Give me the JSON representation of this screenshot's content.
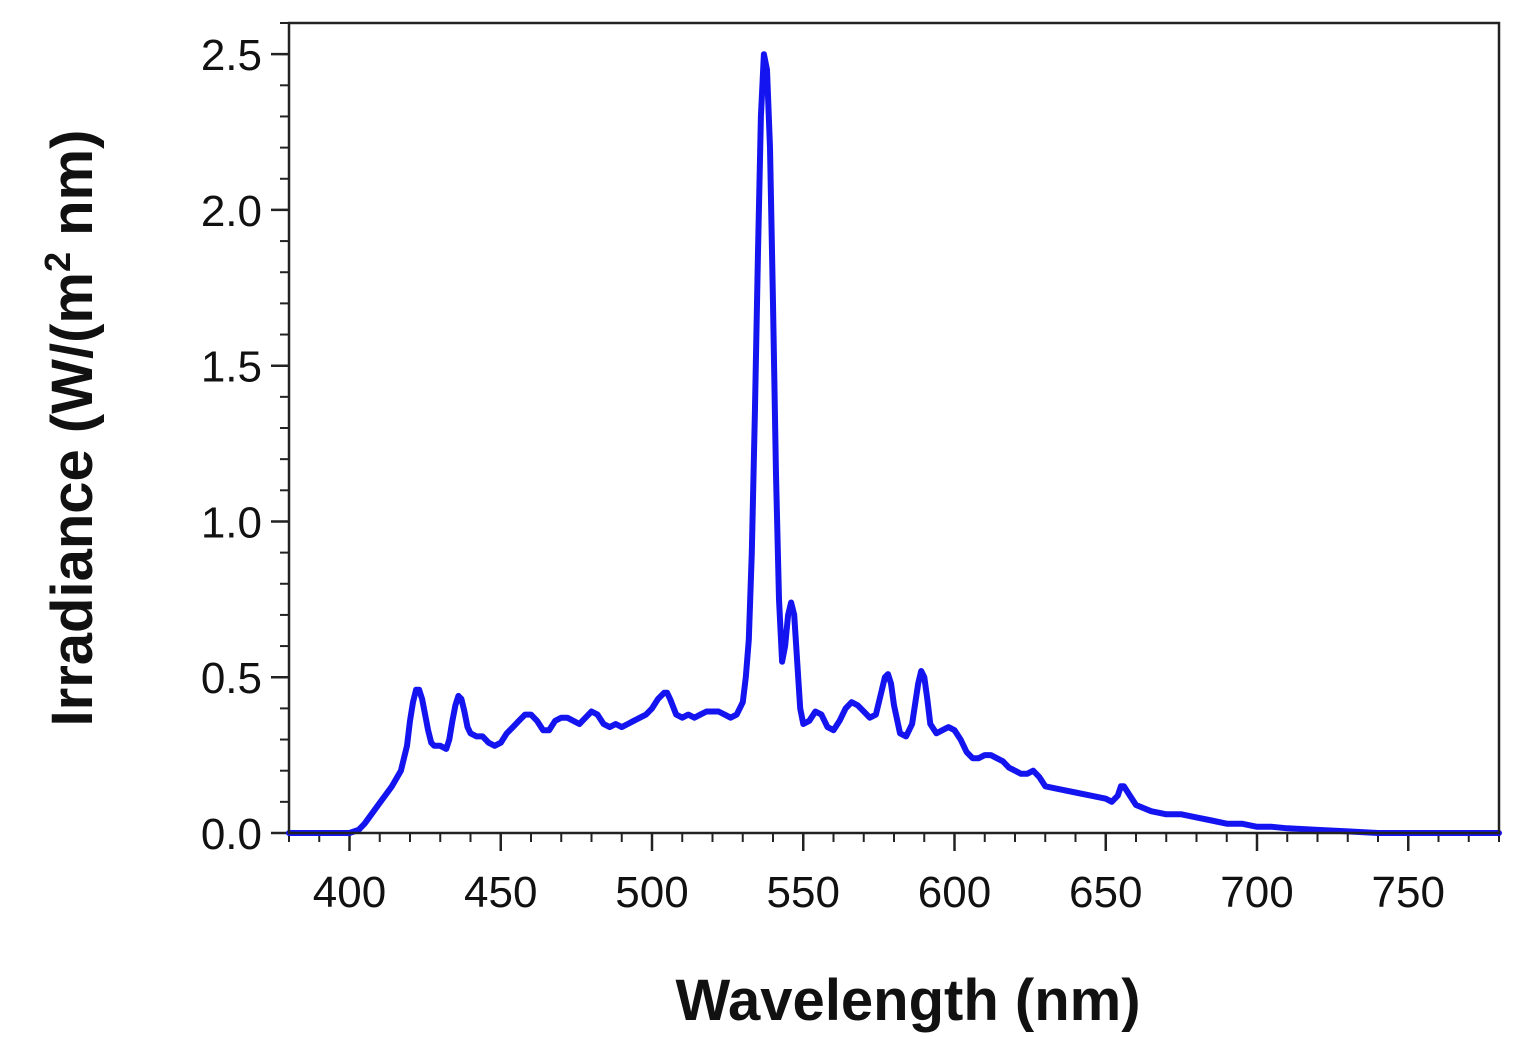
{
  "chart_data": {
    "type": "line",
    "title": "",
    "xlabel": "Wavelength (nm)",
    "ylabel": {
      "prefix": "Irradiance (W/(m",
      "superscript": "2",
      "suffix": " nm)"
    },
    "xlim": [
      380,
      780
    ],
    "ylim": [
      0,
      2.6
    ],
    "x_ticks": [
      400,
      450,
      500,
      550,
      600,
      650,
      700,
      750
    ],
    "x_tick_labels": [
      "400",
      "450",
      "500",
      "550",
      "600",
      "650",
      "700",
      "750"
    ],
    "y_ticks": [
      0,
      0.5,
      1.0,
      1.5,
      2.0,
      2.5
    ],
    "y_tick_labels": [
      "0.0",
      "0.5",
      "1.0",
      "1.5",
      "2.0",
      "2.5"
    ],
    "x_minor_step": 10,
    "y_minor_step": 0.1,
    "grid": false,
    "legend": "none",
    "series": [
      {
        "name": "Irradiance",
        "color": "#1414f0",
        "x": [
          380,
          390,
          400,
          403,
          405,
          408,
          411,
          414,
          417,
          419,
          420,
          421,
          422,
          423,
          424,
          425,
          426,
          427,
          428,
          430,
          432,
          433,
          434,
          435,
          436,
          437,
          438,
          439,
          440,
          442,
          444,
          446,
          448,
          450,
          452,
          454,
          456,
          458,
          460,
          462,
          464,
          466,
          468,
          470,
          472,
          474,
          476,
          478,
          480,
          482,
          484,
          486,
          488,
          490,
          492,
          494,
          496,
          498,
          500,
          502,
          504,
          505,
          506,
          508,
          510,
          512,
          514,
          516,
          518,
          520,
          522,
          524,
          526,
          528,
          530,
          531,
          532,
          533,
          534,
          535,
          536,
          537,
          538,
          539,
          540,
          541,
          542,
          543,
          544,
          545,
          546,
          547,
          548,
          549,
          550,
          552,
          554,
          556,
          558,
          560,
          562,
          564,
          566,
          568,
          570,
          572,
          574,
          576,
          577,
          578,
          579,
          580,
          582,
          584,
          586,
          588,
          589,
          590,
          591,
          592,
          594,
          596,
          598,
          600,
          602,
          604,
          606,
          608,
          610,
          612,
          614,
          616,
          618,
          620,
          622,
          624,
          626,
          628,
          630,
          635,
          640,
          645,
          650,
          652,
          654,
          655,
          656,
          658,
          660,
          665,
          670,
          675,
          680,
          685,
          690,
          695,
          700,
          705,
          710,
          720,
          730,
          740,
          750,
          760,
          770,
          780
        ],
        "values": [
          0.0,
          0.0,
          0.0,
          0.01,
          0.03,
          0.07,
          0.11,
          0.15,
          0.2,
          0.28,
          0.36,
          0.42,
          0.46,
          0.46,
          0.43,
          0.38,
          0.33,
          0.29,
          0.28,
          0.28,
          0.27,
          0.3,
          0.36,
          0.41,
          0.44,
          0.43,
          0.39,
          0.34,
          0.32,
          0.31,
          0.31,
          0.29,
          0.28,
          0.29,
          0.32,
          0.34,
          0.36,
          0.38,
          0.38,
          0.36,
          0.33,
          0.33,
          0.36,
          0.37,
          0.37,
          0.36,
          0.35,
          0.37,
          0.39,
          0.38,
          0.35,
          0.34,
          0.35,
          0.34,
          0.35,
          0.36,
          0.37,
          0.38,
          0.4,
          0.43,
          0.45,
          0.45,
          0.43,
          0.38,
          0.37,
          0.38,
          0.37,
          0.38,
          0.39,
          0.39,
          0.39,
          0.38,
          0.37,
          0.38,
          0.42,
          0.5,
          0.62,
          0.9,
          1.35,
          1.85,
          2.3,
          2.5,
          2.45,
          2.2,
          1.7,
          1.15,
          0.75,
          0.55,
          0.6,
          0.7,
          0.74,
          0.7,
          0.55,
          0.4,
          0.35,
          0.36,
          0.39,
          0.38,
          0.34,
          0.33,
          0.36,
          0.4,
          0.42,
          0.41,
          0.39,
          0.37,
          0.38,
          0.46,
          0.5,
          0.51,
          0.48,
          0.41,
          0.32,
          0.31,
          0.35,
          0.48,
          0.52,
          0.5,
          0.43,
          0.35,
          0.32,
          0.33,
          0.34,
          0.33,
          0.3,
          0.26,
          0.24,
          0.24,
          0.25,
          0.25,
          0.24,
          0.23,
          0.21,
          0.2,
          0.19,
          0.19,
          0.2,
          0.18,
          0.15,
          0.14,
          0.13,
          0.12,
          0.11,
          0.1,
          0.12,
          0.15,
          0.15,
          0.12,
          0.09,
          0.07,
          0.06,
          0.06,
          0.05,
          0.04,
          0.03,
          0.03,
          0.02,
          0.02,
          0.015,
          0.01,
          0.005,
          0.0,
          0.0,
          0.0,
          0.0,
          0.0
        ]
      }
    ]
  }
}
